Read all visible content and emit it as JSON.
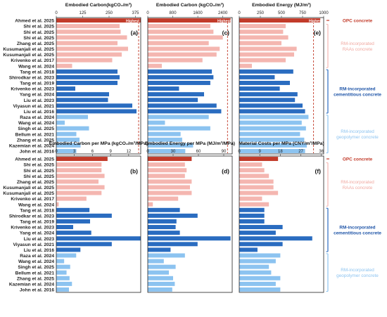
{
  "colors": {
    "opc": "#c23b2a",
    "raa": "#f4b6b0",
    "cem": "#2a6cc0",
    "geo": "#8cc3f0",
    "limit": "#c23b2a",
    "group_opc_text": "#c23b2a",
    "group_raa_text": "#f0a8a0",
    "group_cem_text": "#1f55a8",
    "group_geo_text": "#8cc3f0"
  },
  "studies": [
    "Ahmed et al. 2025",
    "Shi et al. 2025",
    "Shi et al. 2025",
    "Shi et al. 2025",
    "Zhang et al. 2025",
    "Kusumanjali et al. 2025",
    "Kusumanjali et al. 2025",
    "Krivenko et al. 2017",
    "Wang et al. 2024",
    "Tang et al. 2018",
    "Shirodkar et al. 2023",
    "Tang et al. 2019",
    "Krivenko et al. 2023",
    "Yang et al. 2024",
    "Liu et al. 2023",
    "Viyasun et al. 2021",
    "Liu et al. 2016",
    "Raza et al. 2024",
    "Wang et al. 2024",
    "Singh et al. 2025",
    "Bellum et al. 2021",
    "Zhang et al. 2025",
    "Kazemian et al. 2024",
    "John et al. 2016"
  ],
  "groups": [
    {
      "key": "opc",
      "label_lines": [
        "OPC concrete"
      ],
      "start": 0,
      "end": 0
    },
    {
      "key": "raa",
      "label_lines": [
        "RM-incorporated",
        "RAAs concrete"
      ],
      "start": 1,
      "end": 8
    },
    {
      "key": "cem",
      "label_lines": [
        "RM-incorporated",
        "cementitious concrete"
      ],
      "start": 9,
      "end": 16
    },
    {
      "key": "geo",
      "label_lines": [
        "RM-incorporated",
        "geopolymer concrete"
      ],
      "start": 17,
      "end": 23
    }
  ],
  "highest_label": "Highest",
  "chart_data": [
    {
      "type": "bar",
      "orientation": "horizontal",
      "panel": "(a)",
      "title": "Embodied Carbon(kgCO₂/m³)",
      "xlim": [
        0,
        400
      ],
      "xticks": [
        0,
        125,
        250,
        375
      ],
      "limit_line": 390,
      "highest_marker": true,
      "values": [
        420,
        300,
        305,
        335,
        290,
        340,
        310,
        265,
        75,
        290,
        300,
        290,
        90,
        250,
        245,
        360,
        380,
        150,
        40,
        155,
        95,
        110,
        115,
        95
      ]
    },
    {
      "type": "bar",
      "orientation": "horizontal",
      "panel": "(c)",
      "title": "Embodied Carbon (kgCO₂/m³)",
      "xlim": [
        0,
        2700
      ],
      "xticks": [
        0,
        800,
        1600,
        2400
      ],
      "limit_line": 2550,
      "highest_marker": true,
      "values": [
        2650,
        2000,
        2100,
        2400,
        1950,
        2300,
        2200,
        1750,
        450,
        2050,
        2100,
        2000,
        1000,
        1800,
        1600,
        2200,
        2350,
        1950,
        550,
        2000,
        1050,
        1100,
        1450,
        1200
      ]
    },
    {
      "type": "bar",
      "orientation": "horizontal",
      "panel": "(e)",
      "title": "Embodied Energy (MJ/m³)",
      "xlim": [
        0,
        1000
      ],
      "xticks": [
        0,
        250,
        500,
        750,
        1000
      ],
      "limit_line": 880,
      "highest_marker": true,
      "values": [
        960,
        550,
        520,
        580,
        500,
        680,
        650,
        550,
        150,
        640,
        420,
        600,
        480,
        690,
        660,
        750,
        780,
        820,
        740,
        790,
        720,
        770,
        800,
        780
      ]
    },
    {
      "type": "bar",
      "orientation": "horizontal",
      "panel": "(b)",
      "title": "Embodied Carbon per MPa (kgCO₂/m³/MPa)",
      "xlim": [
        0,
        14
      ],
      "xticks": [
        0,
        3,
        6,
        9,
        12
      ],
      "limit_line": null,
      "highest_marker": false,
      "values": [
        8.5,
        7.5,
        7.5,
        8.0,
        7.0,
        8.0,
        7.5,
        5.0,
        0.4,
        5.5,
        9.2,
        5.6,
        2.8,
        5.8,
        14.0,
        9.2,
        4.0,
        3.3,
        1.3,
        2.3,
        1.7,
        2.2,
        2.6,
        2.1
      ]
    },
    {
      "type": "bar",
      "orientation": "horizontal",
      "panel": "(d)",
      "title": "Embodied Energy per MPa (MJ/m³/MPa)",
      "xlim": [
        0,
        100
      ],
      "xticks": [
        0,
        30,
        60,
        90
      ],
      "limit_line": null,
      "highest_marker": false,
      "values": [
        52,
        44,
        46,
        44,
        52,
        50,
        52,
        36,
        6,
        38,
        59,
        34,
        33,
        38,
        98,
        59,
        27,
        44,
        19,
        33,
        25,
        30,
        32,
        29
      ]
    },
    {
      "type": "bar",
      "orientation": "horizontal",
      "panel": "(f)",
      "title": "Material Costs per MPa (CNY/m³/MPa)",
      "xlim": [
        0,
        37
      ],
      "xticks": [
        0,
        9,
        18,
        27,
        36
      ],
      "limit_line": null,
      "highest_marker": false,
      "values": [
        17,
        10,
        11,
        13,
        15,
        15,
        17,
        10,
        13,
        11,
        11,
        11,
        19,
        16,
        32,
        19,
        8,
        18,
        16,
        13,
        14,
        18,
        16,
        18
      ]
    }
  ]
}
